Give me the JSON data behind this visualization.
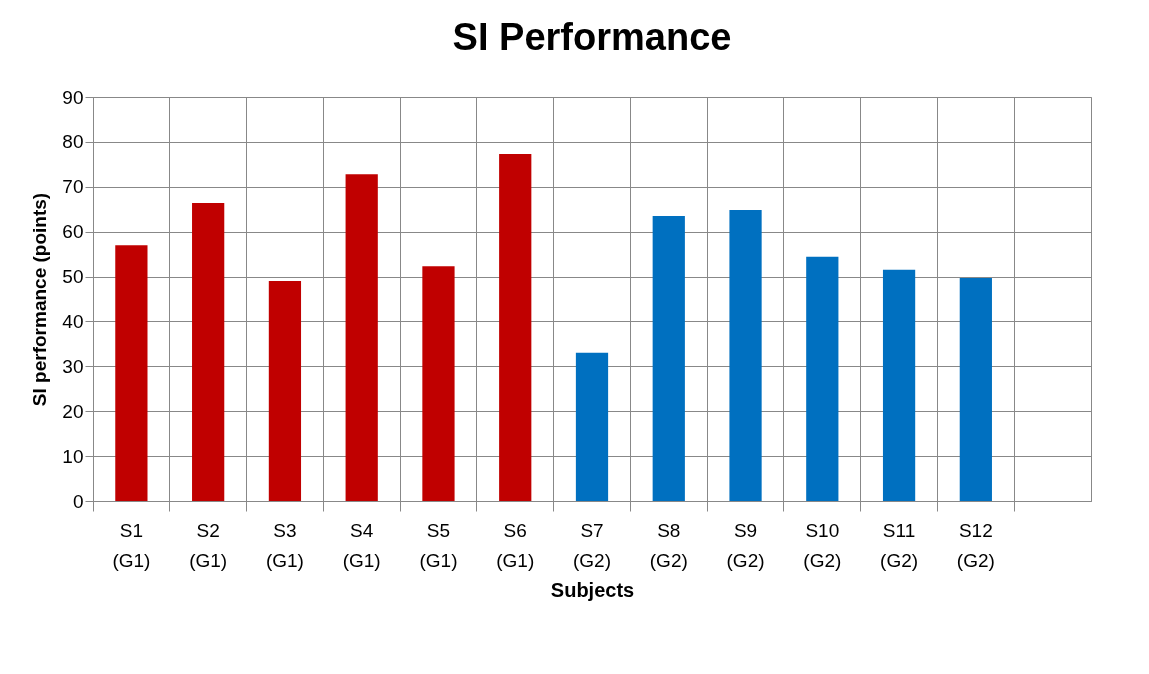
{
  "chart_data": {
    "type": "bar",
    "title": "SI Performance",
    "xlabel": "Subjects",
    "ylabel": "SI performance (points)",
    "categories": [
      "S1 (G1)",
      "S2 (G1)",
      "S3 (G1)",
      "S4 (G1)",
      "S5 (G1)",
      "S6 (G1)",
      "S7 (G2)",
      "S8 (G2)",
      "S9 (G2)",
      "S10 (G2)",
      "S11 (G2)",
      "S12 (G2)",
      null
    ],
    "values": [
      57.0,
      66.4,
      49.0,
      72.8,
      52.3,
      77.3,
      33.0,
      63.5,
      64.8,
      54.4,
      51.5,
      49.7,
      null
    ],
    "colors": [
      "#c00000",
      "#c00000",
      "#c00000",
      "#c00000",
      "#c00000",
      "#c00000",
      "#0070c0",
      "#0070c0",
      "#0070c0",
      "#0070c0",
      "#0070c0",
      "#0070c0",
      "#0070c0"
    ],
    "ylim": [
      0,
      90
    ],
    "yticks": [
      0,
      10,
      20,
      30,
      40,
      50,
      60,
      70,
      80,
      90
    ],
    "grid": true
  }
}
